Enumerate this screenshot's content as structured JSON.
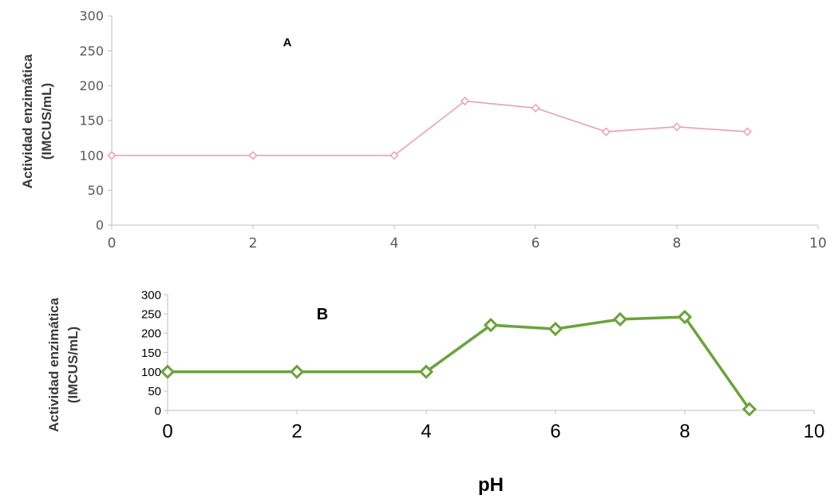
{
  "chart_data": [
    {
      "type": "line",
      "panel_label": "A",
      "ylabel_line1": "Actividad enzimática",
      "ylabel_line2": "(IMCUS/mL)",
      "xlabel": "",
      "xlim": [
        0,
        10
      ],
      "ylim": [
        0,
        300
      ],
      "xticks": [
        "0",
        "2",
        "4",
        "6",
        "8",
        "10"
      ],
      "yticks": [
        "0",
        "50",
        "100",
        "150",
        "200",
        "250",
        "300"
      ],
      "grid": false,
      "color": "#e8a0b8",
      "marker": "diamond-open",
      "series": [
        {
          "x": [
            0,
            2,
            4,
            5,
            6,
            7,
            8,
            9
          ],
          "values": [
            100,
            100,
            100,
            178,
            168,
            134,
            141,
            134
          ]
        }
      ]
    },
    {
      "type": "line",
      "panel_label": "B",
      "ylabel_line1": "Actividad enzimática",
      "ylabel_line2": "(IMCUS/mL)",
      "xlabel": "pH",
      "xlim": [
        0,
        10
      ],
      "ylim": [
        0,
        300
      ],
      "xticks": [
        "0",
        "2",
        "4",
        "6",
        "8",
        "10"
      ],
      "yticks": [
        "0",
        "50",
        "100",
        "150",
        "200",
        "250",
        "300"
      ],
      "grid": false,
      "color": "#6aa33c",
      "marker": "diamond-open",
      "series": [
        {
          "x": [
            0,
            2,
            4,
            5,
            6,
            7,
            8,
            9
          ],
          "values": [
            100,
            100,
            100,
            221,
            211,
            236,
            242,
            3
          ]
        }
      ]
    }
  ]
}
